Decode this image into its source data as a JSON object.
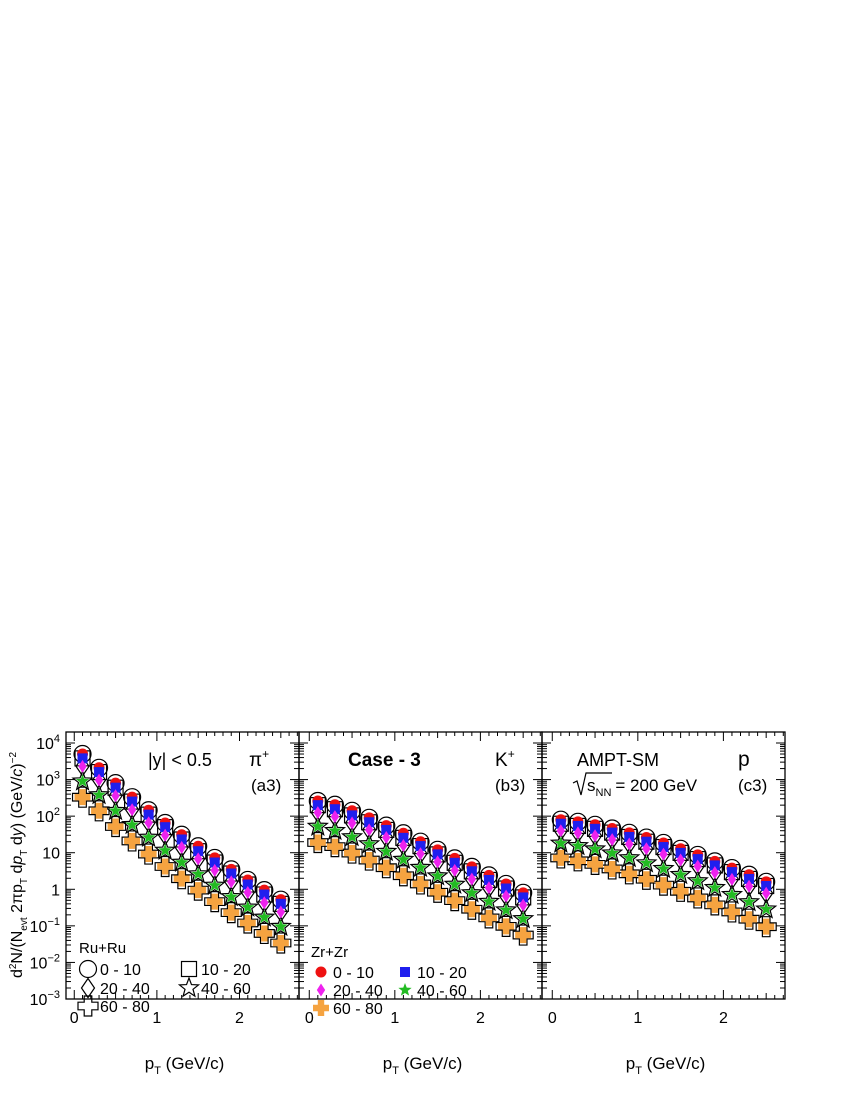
{
  "chart_data": {
    "type": "scatter",
    "log_y": true,
    "ylim": [
      0.001,
      20000
    ],
    "xlim": [
      -0.1,
      2.72
    ],
    "ylabel": "d²N/(N_evt 2πp_T dp_T dy) (GeV/c)^-2",
    "xlabel": "p_T (GeV/c)",
    "x": [
      0.1,
      0.3,
      0.5,
      0.7,
      0.9,
      1.1,
      1.3,
      1.5,
      1.7,
      1.9,
      2.1,
      2.3,
      2.5
    ],
    "x_ticks": [
      0,
      1,
      2
    ],
    "y_tick_labels": [
      {
        "exp": 4,
        "label": "10",
        "sup": "4"
      },
      {
        "exp": 3,
        "label": "10",
        "sup": "3"
      },
      {
        "exp": 2,
        "label": "10",
        "sup": "2"
      },
      {
        "exp": 1,
        "label": "10",
        "sup": ""
      },
      {
        "exp": 0,
        "label": "1",
        "sup": ""
      },
      {
        "exp": -1,
        "label": "10",
        "sup": "−1"
      },
      {
        "exp": -2,
        "label": "10",
        "sup": "−2"
      },
      {
        "exp": -3,
        "label": "10",
        "sup": "−3"
      }
    ],
    "centrality_style": [
      {
        "range": "0 - 10",
        "marker": "circle",
        "zr_color": "#ee1111"
      },
      {
        "range": "10 - 20",
        "marker": "square",
        "zr_color": "#1f1fee"
      },
      {
        "range": "20 - 40",
        "marker": "diamond",
        "zr_color": "#ee22ee"
      },
      {
        "range": "40 - 60",
        "marker": "star",
        "zr_color": "#22bb22"
      },
      {
        "range": "60 - 80",
        "marker": "cross",
        "zr_color": "#f5a340"
      }
    ],
    "panels": [
      {
        "particle": "π",
        "particle_sup": "+",
        "panel_tag": "(a3)",
        "text": "|y| < 0.5",
        "series": [
          {
            "centrality": "0 - 10",
            "values": [
              5000,
              2100,
              800,
              330,
              145,
              65,
              31,
              15,
              7.2,
              3.5,
              1.8,
              0.95,
              0.52
            ]
          },
          {
            "centrality": "10 - 20",
            "values": [
              3800,
              1600,
              600,
              250,
              110,
              50,
              23,
              11,
              5.4,
              2.7,
              1.35,
              0.72,
              0.4
            ]
          },
          {
            "centrality": "20 - 40",
            "values": [
              2300,
              970,
              360,
              150,
              66,
              30,
              14,
              6.8,
              3.3,
              1.6,
              0.82,
              0.43,
              0.24
            ]
          },
          {
            "centrality": "40 - 60",
            "values": [
              900,
              380,
              140,
              58,
              26,
              11.5,
              5.4,
              2.6,
              1.27,
              0.62,
              0.32,
              0.17,
              0.095
            ]
          },
          {
            "centrality": "60 - 80",
            "values": [
              330,
              140,
              52,
              21,
              9.2,
              4.2,
              1.95,
              0.95,
              0.46,
              0.23,
              0.12,
              0.062,
              0.034
            ]
          }
        ]
      },
      {
        "particle": "K",
        "particle_sup": "+",
        "panel_tag": "(b3)",
        "text": "Case - 3",
        "series": [
          {
            "centrality": "0 - 10",
            "values": [
              260,
              205,
              140,
              90,
              55,
              34,
              20,
              12,
              7.0,
              4.1,
              2.4,
              1.4,
              0.8
            ]
          },
          {
            "centrality": "10 - 20",
            "values": [
              200,
              155,
              105,
              68,
              42,
              25.5,
              15.2,
              9.0,
              5.3,
              3.1,
              1.8,
              1.05,
              0.6
            ]
          },
          {
            "centrality": "20 - 40",
            "values": [
              125,
              97,
              65,
              42,
              26,
              15.8,
              9.4,
              5.6,
              3.3,
              1.9,
              1.1,
              0.65,
              0.37
            ]
          },
          {
            "centrality": "40 - 60",
            "values": [
              52,
              40,
              27,
              17.3,
              10.7,
              6.5,
              3.9,
              2.3,
              1.35,
              0.79,
              0.46,
              0.27,
              0.155
            ]
          },
          {
            "centrality": "60 - 80",
            "values": [
              19,
              14.7,
              9.8,
              6.3,
              3.9,
              2.35,
              1.4,
              0.83,
              0.49,
              0.285,
              0.165,
              0.097,
              0.056
            ]
          }
        ]
      },
      {
        "particle": "p",
        "particle_sup": "",
        "panel_tag": "(c3)",
        "text": "AMPT-SM",
        "energy_label": "= 200 GeV",
        "energy_var": "s",
        "energy_sub": "NN",
        "series": [
          {
            "centrality": "0 - 10",
            "values": [
              80,
              70,
              58,
              46,
              35,
              26,
              18.5,
              12.8,
              8.7,
              5.8,
              3.8,
              2.5,
              1.6
            ]
          },
          {
            "centrality": "10 - 20",
            "values": [
              62,
              54,
              45,
              35.5,
              27,
              20,
              14.3,
              9.9,
              6.7,
              4.5,
              2.95,
              1.92,
              1.23
            ]
          },
          {
            "centrality": "20 - 40",
            "values": [
              40,
              35,
              29,
              22.8,
              17.3,
              12.8,
              9.1,
              6.3,
              4.3,
              2.85,
              1.87,
              1.21,
              0.78
            ]
          },
          {
            "centrality": "40 - 60",
            "values": [
              18,
              15.4,
              12.5,
              9.7,
              7.2,
              5.2,
              3.65,
              2.5,
              1.68,
              1.1,
              0.71,
              0.45,
              0.285
            ]
          },
          {
            "centrality": "60 - 80",
            "values": [
              7.2,
              6.0,
              4.8,
              3.6,
              2.65,
              1.88,
              1.3,
              0.88,
              0.58,
              0.375,
              0.24,
              0.152,
              0.095
            ]
          }
        ]
      }
    ],
    "legend": [
      {
        "title": "Ru+Ru",
        "panel": 0,
        "position": "bottom-left",
        "filled": false
      },
      {
        "title": "Zr+Zr",
        "panel": 1,
        "position": "bottom-left",
        "filled": true
      }
    ]
  }
}
